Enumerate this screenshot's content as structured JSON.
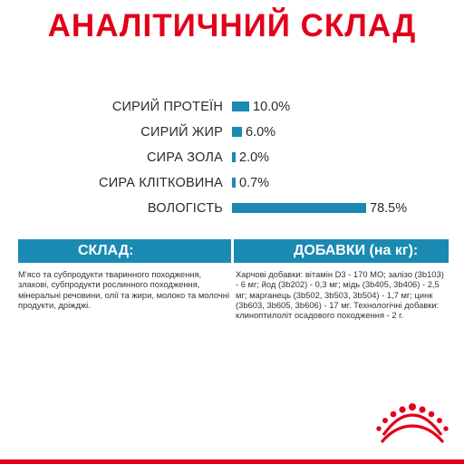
{
  "title": "АНАЛІТИЧНИЙ СКЛАД",
  "analysis": [
    {
      "label": "СИРИЙ ПРОТЕЇН",
      "value": "10.0%",
      "percent": 10.0
    },
    {
      "label": "СИРИЙ ЖИР",
      "value": "6.0%",
      "percent": 6.0
    },
    {
      "label": "СИРА ЗОЛА",
      "value": "2.0%",
      "percent": 2.0
    },
    {
      "label": "СИРА КЛІТКОВИНА",
      "value": "0.7%",
      "percent": 0.7
    },
    {
      "label": "ВОЛОГІСТЬ",
      "value": "78.5%",
      "percent": 78.5
    }
  ],
  "composition": {
    "heading": "СКЛАД:",
    "text": "М'ясо та субпродукти тваринного походження, злакові, субпродукти рослинного походження, мінеральні речовини, олії та жири, молоко та молочні продукти, дріжджі."
  },
  "additives": {
    "heading": "ДОБАВКИ (на кг):",
    "text": "Харчові добавки: вітамін D3 - 170 МО; залізо (3b103) - 6 мг; йод (3b202) - 0,3 мг; мідь (3b405, 3b406) - 2,5 мг; марганець (3b502, 3b503, 3b504) - 1,7 мг; цинк (3b603, 3b605, 3b606) - 17 мг. Технологічні добавки: клиноптилоліт осадового походження - 2 г."
  },
  "colors": {
    "brand_red": "#e2001a",
    "bar_blue": "#1a8ab3"
  },
  "logo": {
    "icon": "royal-crown-icon"
  }
}
